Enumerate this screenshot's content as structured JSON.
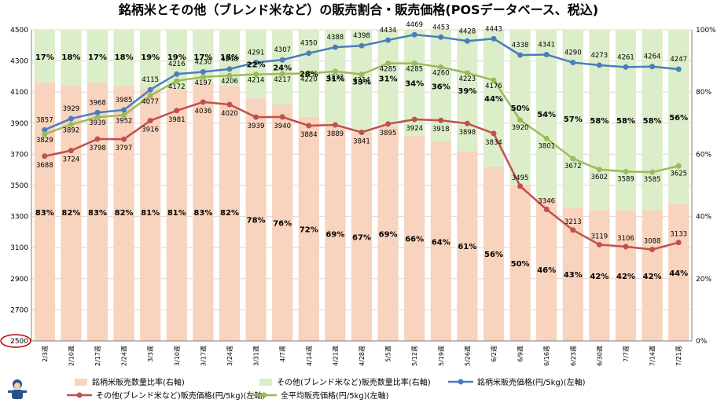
{
  "chart_data": {
    "type": "bar+line",
    "title": "銘柄米とその他（ブレンド米など）の販売割合・販売価格(POSデータベース、税込)",
    "categories": [
      "2/3週",
      "2/10週",
      "2/17週",
      "2/24週",
      "3/3週",
      "3/10週",
      "3/17週",
      "3/24週",
      "3/31週",
      "4/7週",
      "4/14週",
      "4/21週",
      "4/28週",
      "5/5週",
      "5/12週",
      "5/19週",
      "5/26週",
      "6/2週",
      "6/9週",
      "6/16週",
      "6/23週",
      "6/30週",
      "7/7週",
      "7/14週",
      "7/21週"
    ],
    "y_left": {
      "min": 2500,
      "max": 4500,
      "step": 200,
      "ticks": [
        "2500",
        "2700",
        "2900",
        "3100",
        "3300",
        "3500",
        "3700",
        "3900",
        "4100",
        "4300",
        "4500"
      ]
    },
    "y_right": {
      "min": 0,
      "max": 100,
      "step": 20,
      "ticks": [
        "0%",
        "20%",
        "40%",
        "60%",
        "80%",
        "100%"
      ]
    },
    "highlight_tick": "2500",
    "series": [
      {
        "name": "銘柄米販売数量比率(右軸)",
        "kind": "stacked-bar",
        "axis": "right",
        "color": "#f8d3bd",
        "values": [
          83,
          82,
          83,
          82,
          81,
          81,
          83,
          82,
          78,
          76,
          72,
          69,
          67,
          69,
          66,
          64,
          61,
          56,
          50,
          46,
          43,
          42,
          42,
          42,
          44
        ],
        "labels": [
          "83%",
          "82%",
          "83%",
          "82%",
          "81%",
          "81%",
          "83%",
          "82%",
          "78%",
          "76%",
          "72%",
          "69%",
          "67%",
          "69%",
          "66%",
          "64%",
          "61%",
          "56%",
          "50%",
          "46%",
          "43%",
          "42%",
          "42%",
          "42%",
          "44%"
        ]
      },
      {
        "name": "その他(ブレンド米など)販売数量比率(右軸)",
        "kind": "stacked-bar",
        "axis": "right",
        "color": "#dcedc9",
        "values": [
          17,
          18,
          17,
          18,
          19,
          19,
          17,
          18,
          22,
          24,
          28,
          31,
          33,
          31,
          34,
          36,
          39,
          44,
          50,
          54,
          57,
          58,
          58,
          58,
          56
        ],
        "labels": [
          "17%",
          "18%",
          "17%",
          "18%",
          "19%",
          "19%",
          "17%",
          "18%",
          "22%",
          "24%",
          "28%",
          "31%",
          "33%",
          "31%",
          "34%",
          "36%",
          "39%",
          "44%",
          "50%",
          "54%",
          "57%",
          "58%",
          "58%",
          "58%",
          "56%"
        ]
      },
      {
        "name": "銘柄米販売価格(円/5kg)(左軸)",
        "kind": "line",
        "axis": "left",
        "color": "#4a7ebb",
        "values": [
          3857,
          3929,
          3968,
          3985,
          4115,
          4216,
          4230,
          4248,
          4291,
          4307,
          4350,
          4388,
          4398,
          4434,
          4469,
          4453,
          4428,
          4443,
          4338,
          4341,
          4290,
          4273,
          4261,
          4264,
          4247
        ],
        "labels": [
          "3857",
          "3929",
          "3968",
          "3985",
          "4115",
          "4216",
          "4230",
          "4248",
          "4291",
          "4307",
          "4350",
          "4388",
          "4398",
          "4434",
          "4469",
          "4453",
          "4428",
          "4443",
          "4338",
          "4341",
          "4290",
          "4273",
          "4261",
          "4264",
          "4247"
        ]
      },
      {
        "name": "その他(ブレンド米など)販売価格(円/5kg)(左軸)",
        "kind": "line",
        "axis": "left",
        "color": "#c0504d",
        "values": [
          3688,
          3724,
          3798,
          3797,
          3916,
          3981,
          4036,
          4020,
          3939,
          3940,
          3884,
          3889,
          3841,
          3895,
          3924,
          3918,
          3898,
          3834,
          3495,
          3346,
          3213,
          3119,
          3106,
          3088,
          3133
        ],
        "labels": [
          "3688",
          "3724",
          "3798",
          "3797",
          "3916",
          "3981",
          "4036",
          "4020",
          "3939",
          "3940",
          "3884",
          "3889",
          "3841",
          "3895",
          "3924",
          "3918",
          "3898",
          "3834",
          "3495",
          "3346",
          "3213",
          "3119",
          "3106",
          "3088",
          "3133"
        ]
      },
      {
        "name": "全平均販売価格(円/5kg)(左軸)",
        "kind": "line",
        "axis": "left",
        "color": "#9bbb59",
        "values": [
          3829,
          3892,
          3939,
          3952,
          4077,
          4172,
          4197,
          4206,
          4214,
          4217,
          4220,
          4233,
          4214,
          4285,
          4285,
          4260,
          4223,
          4176,
          3920,
          3801,
          3672,
          3602,
          3589,
          3585,
          3625
        ],
        "labels": [
          "3829",
          "3892",
          "3939",
          "3952",
          "4077",
          "4172",
          "4197",
          "4206",
          "4214",
          "4217",
          "4220",
          "4233",
          "4214",
          "4285",
          "4285",
          "4260",
          "4223",
          "4176",
          "3920",
          "3801",
          "3672",
          "3602",
          "3589",
          "3585",
          "3625"
        ]
      }
    ],
    "grid": true,
    "legend": "bottom"
  }
}
